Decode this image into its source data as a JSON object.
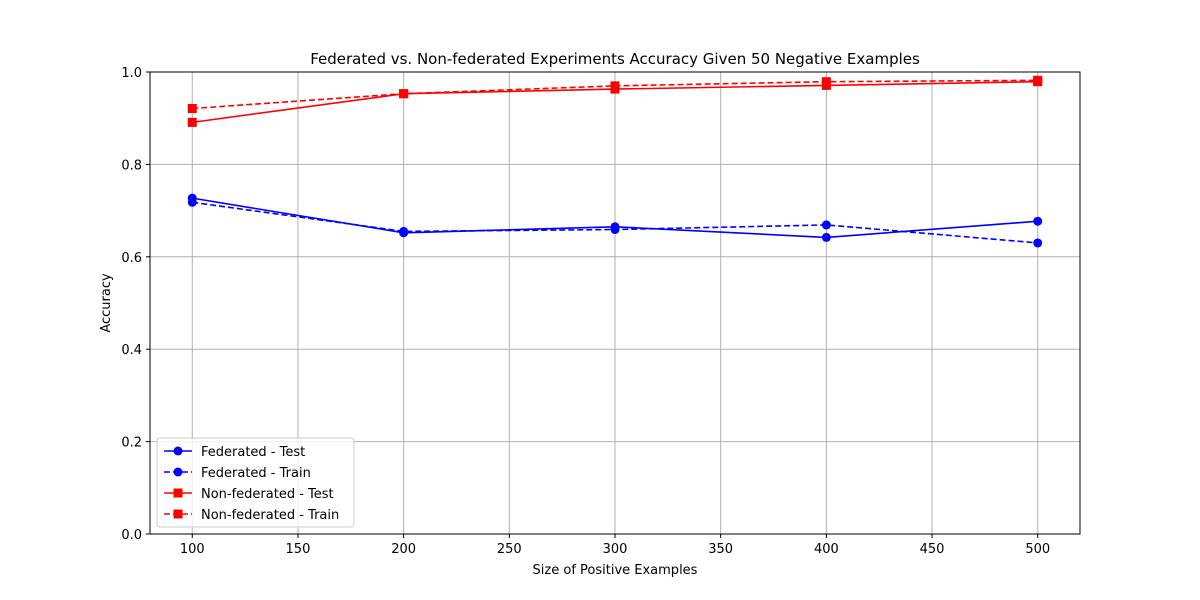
{
  "chart_data": {
    "type": "line",
    "title": "Federated vs. Non-federated Experiments Accuracy Given 50 Negative Examples",
    "xlabel": "Size of Positive Examples",
    "ylabel": "Accuracy",
    "xlim": [
      80,
      520
    ],
    "ylim": [
      0.0,
      1.0
    ],
    "xticks": [
      100,
      150,
      200,
      250,
      300,
      350,
      400,
      450,
      500
    ],
    "xtick_labels": [
      "100",
      "150",
      "200",
      "250",
      "300",
      "350",
      "400",
      "450",
      "500"
    ],
    "yticks": [
      0.0,
      0.2,
      0.4,
      0.6,
      0.8,
      1.0
    ],
    "ytick_labels": [
      "0.0",
      "0.2",
      "0.4",
      "0.6",
      "0.8",
      "1.0"
    ],
    "grid": true,
    "legend_position": "lower-left",
    "x": [
      100,
      200,
      300,
      400,
      500
    ],
    "series": [
      {
        "name": "Federated - Test",
        "values": [
          0.727,
          0.652,
          0.665,
          0.642,
          0.677
        ],
        "color": "#0000ff",
        "linestyle": "solid",
        "marker": "circle"
      },
      {
        "name": "Federated - Train",
        "values": [
          0.718,
          0.655,
          0.659,
          0.669,
          0.63
        ],
        "color": "#0000ff",
        "linestyle": "dashed",
        "marker": "circle"
      },
      {
        "name": "Non-federated - Test",
        "values": [
          0.891,
          0.953,
          0.963,
          0.971,
          0.979
        ],
        "color": "#ff0000",
        "linestyle": "solid",
        "marker": "square"
      },
      {
        "name": "Non-federated - Train",
        "values": [
          0.921,
          0.953,
          0.97,
          0.979,
          0.982
        ],
        "color": "#ff0000",
        "linestyle": "dashed",
        "marker": "square"
      }
    ]
  }
}
